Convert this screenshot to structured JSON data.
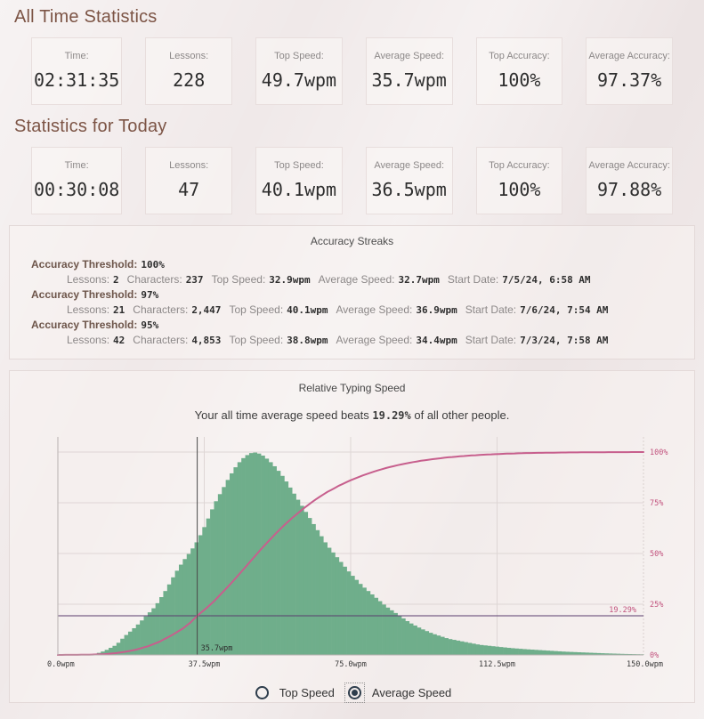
{
  "sections": [
    {
      "title": "All Time Statistics",
      "cards": [
        {
          "label": "Time:",
          "value": "02:31:35"
        },
        {
          "label": "Lessons:",
          "value": "228"
        },
        {
          "label": "Top Speed:",
          "value": "49.7wpm"
        },
        {
          "label": "Average Speed:",
          "value": "35.7wpm"
        },
        {
          "label": "Top Accuracy:",
          "value": "100%"
        },
        {
          "label": "Average Accuracy:",
          "value": "97.37%"
        }
      ]
    },
    {
      "title": "Statistics for Today",
      "cards": [
        {
          "label": "Time:",
          "value": "00:30:08"
        },
        {
          "label": "Lessons:",
          "value": "47"
        },
        {
          "label": "Top Speed:",
          "value": "40.1wpm"
        },
        {
          "label": "Average Speed:",
          "value": "36.5wpm"
        },
        {
          "label": "Top Accuracy:",
          "value": "100%"
        },
        {
          "label": "Average Accuracy:",
          "value": "97.88%"
        }
      ]
    }
  ],
  "streaks_panel": {
    "title": "Accuracy Streaks",
    "threshold_label": "Accuracy Threshold:",
    "streaks": [
      {
        "threshold": "100%",
        "pairs": [
          [
            "Lessons:",
            "2"
          ],
          [
            "Characters:",
            "237"
          ],
          [
            "Top Speed:",
            "32.9wpm"
          ],
          [
            "Average Speed:",
            "32.7wpm"
          ],
          [
            "Start Date:",
            "7/5/24, 6:58 AM"
          ]
        ]
      },
      {
        "threshold": "97%",
        "pairs": [
          [
            "Lessons:",
            "21"
          ],
          [
            "Characters:",
            "2,447"
          ],
          [
            "Top Speed:",
            "40.1wpm"
          ],
          [
            "Average Speed:",
            "36.9wpm"
          ],
          [
            "Start Date:",
            "7/6/24, 7:54 AM"
          ]
        ]
      },
      {
        "threshold": "95%",
        "pairs": [
          [
            "Lessons:",
            "42"
          ],
          [
            "Characters:",
            "4,853"
          ],
          [
            "Top Speed:",
            "38.8wpm"
          ],
          [
            "Average Speed:",
            "34.4wpm"
          ],
          [
            "Start Date:",
            "7/3/24, 7:58 AM"
          ]
        ]
      }
    ]
  },
  "chart_panel": {
    "title": "Relative Typing Speed",
    "subtitle_prefix": "Your all time average speed beats ",
    "subtitle_value": "19.29%",
    "subtitle_suffix": " of all other people.",
    "controls": [
      {
        "label": "Top Speed",
        "selected": false
      },
      {
        "label": "Average Speed",
        "selected": true
      }
    ]
  },
  "chart_data": {
    "type": "histogram+cdf",
    "title": "Relative Typing Speed",
    "x_unit": "wpm",
    "x_range": [
      0,
      150
    ],
    "grid": true,
    "x_ticks": [
      {
        "value": 0,
        "label": "0.0wpm"
      },
      {
        "value": 37.5,
        "label": "37.5wpm"
      },
      {
        "value": 75,
        "label": "75.0wpm"
      },
      {
        "value": 112.5,
        "label": "112.5wpm"
      },
      {
        "value": 150,
        "label": "150.0wpm"
      }
    ],
    "y_right_ticks": [
      {
        "value": 0,
        "label": "0%"
      },
      {
        "value": 25,
        "label": "25%"
      },
      {
        "value": 50,
        "label": "50%"
      },
      {
        "value": 75,
        "label": "75%"
      },
      {
        "value": 100,
        "label": "100%"
      }
    ],
    "percentile_line": {
      "value": 19.29,
      "label": "19.29%"
    },
    "marker": {
      "value": 35.7,
      "label": "35.7wpm"
    },
    "histogram": {
      "name": "population-speed-distribution",
      "color": "#6fae8b",
      "points": [
        [
          0,
          0
        ],
        [
          6,
          0
        ],
        [
          8,
          0.3
        ],
        [
          10,
          0.7
        ],
        [
          12,
          2
        ],
        [
          15,
          5
        ],
        [
          17,
          9
        ],
        [
          20,
          14
        ],
        [
          22,
          18
        ],
        [
          25,
          24
        ],
        [
          28,
          33
        ],
        [
          30,
          40
        ],
        [
          32,
          46
        ],
        [
          34,
          51
        ],
        [
          36,
          57
        ],
        [
          38,
          65
        ],
        [
          40,
          74
        ],
        [
          42,
          81
        ],
        [
          44,
          88
        ],
        [
          46,
          94
        ],
        [
          48,
          98
        ],
        [
          50,
          100
        ],
        [
          52,
          99
        ],
        [
          54,
          96
        ],
        [
          56,
          92
        ],
        [
          58,
          87
        ],
        [
          60,
          81
        ],
        [
          63,
          72
        ],
        [
          66,
          63
        ],
        [
          69,
          54
        ],
        [
          72,
          47
        ],
        [
          75,
          40
        ],
        [
          78,
          34
        ],
        [
          81,
          29
        ],
        [
          84,
          24
        ],
        [
          87,
          20
        ],
        [
          90,
          16
        ],
        [
          93,
          13
        ],
        [
          96,
          10.5
        ],
        [
          100,
          8
        ],
        [
          104,
          6.5
        ],
        [
          108,
          5
        ],
        [
          112,
          4.2
        ],
        [
          116,
          3.4
        ],
        [
          120,
          2.8
        ],
        [
          125,
          2.2
        ],
        [
          130,
          1.6
        ],
        [
          135,
          1.2
        ],
        [
          140,
          0.8
        ],
        [
          145,
          0.5
        ],
        [
          150,
          0.3
        ]
      ]
    },
    "cdf": {
      "name": "cumulative-percentile",
      "color": "#c75f8d",
      "points": [
        [
          0,
          0
        ],
        [
          8,
          0.1
        ],
        [
          12,
          0.4
        ],
        [
          15,
          0.9
        ],
        [
          18,
          1.8
        ],
        [
          20,
          2.6
        ],
        [
          23,
          4.2
        ],
        [
          26,
          6.5
        ],
        [
          29,
          9.5
        ],
        [
          32,
          13
        ],
        [
          34,
          16
        ],
        [
          35.7,
          19.29
        ],
        [
          38,
          23
        ],
        [
          40,
          26.5
        ],
        [
          42,
          30.5
        ],
        [
          44,
          34.5
        ],
        [
          46,
          38.8
        ],
        [
          48,
          43.2
        ],
        [
          50,
          47.6
        ],
        [
          52,
          52
        ],
        [
          54,
          56.2
        ],
        [
          56,
          60.2
        ],
        [
          58,
          64
        ],
        [
          60,
          67.5
        ],
        [
          63,
          72.3
        ],
        [
          66,
          76.6
        ],
        [
          69,
          80.3
        ],
        [
          72,
          83.4
        ],
        [
          75,
          86.1
        ],
        [
          78,
          88.4
        ],
        [
          81,
          90.4
        ],
        [
          84,
          92.1
        ],
        [
          87,
          93.5
        ],
        [
          90,
          94.7
        ],
        [
          93,
          95.7
        ],
        [
          96,
          96.5
        ],
        [
          100,
          97.4
        ],
        [
          105,
          98.2
        ],
        [
          110,
          98.8
        ],
        [
          115,
          99.2
        ],
        [
          120,
          99.5
        ],
        [
          130,
          99.8
        ],
        [
          140,
          99.93
        ],
        [
          150,
          100
        ]
      ]
    },
    "colors": {
      "grid": "#ded6d5",
      "axis": "#b8b1b0",
      "right_axis": "#d9d0cf",
      "percentile_line": "#5a3d6e",
      "tick_labels": "#3a3a3a",
      "right_labels": "#c2537e",
      "marker": "#4a4a4a"
    }
  }
}
